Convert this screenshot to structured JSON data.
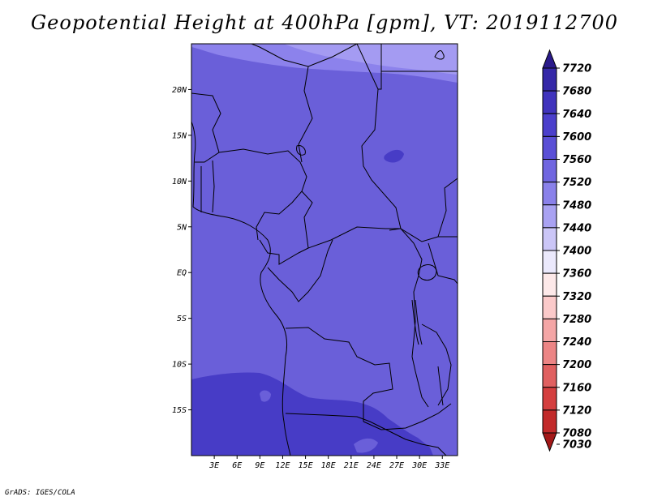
{
  "title": "Geopotential Height at 400hPa [gpm], VT: 2019112700",
  "footer": "GrADS: IGES/COLA",
  "map": {
    "lat_range": [
      -20,
      25
    ],
    "lon_range": [
      0,
      35
    ],
    "lat_ticks": [
      {
        "value": 20,
        "label": "20N"
      },
      {
        "value": 15,
        "label": "15N"
      },
      {
        "value": 10,
        "label": "10N"
      },
      {
        "value": 5,
        "label": "5N"
      },
      {
        "value": 0,
        "label": "EQ"
      },
      {
        "value": -5,
        "label": "5S"
      },
      {
        "value": -10,
        "label": "10S"
      },
      {
        "value": -15,
        "label": "15S"
      }
    ],
    "lon_ticks": [
      {
        "value": 3,
        "label": "3E"
      },
      {
        "value": 6,
        "label": "6E"
      },
      {
        "value": 9,
        "label": "9E"
      },
      {
        "value": 12,
        "label": "12E"
      },
      {
        "value": 15,
        "label": "15E"
      },
      {
        "value": 18,
        "label": "18E"
      },
      {
        "value": 21,
        "label": "21E"
      },
      {
        "value": 24,
        "label": "24E"
      },
      {
        "value": 27,
        "label": "27E"
      },
      {
        "value": 30,
        "label": "30E"
      },
      {
        "value": 33,
        "label": "33E"
      }
    ],
    "field_colors": {
      "background_7560_7600": "#6a5fd9",
      "north_7520_7560": "#8c82ec",
      "north_7480_7520": "#a49bf2",
      "south_7600_7640": "#473cc6"
    }
  },
  "colorbar": {
    "levels": [
      7720,
      7680,
      7640,
      7600,
      7560,
      7520,
      7480,
      7440,
      7400,
      7360,
      7320,
      7280,
      7240,
      7200,
      7160,
      7120,
      7080,
      7030
    ],
    "colors_top_to_bottom": [
      "#2a1a8a",
      "#3528a8",
      "#4033bd",
      "#4b3fcc",
      "#5a4fd6",
      "#7066e0",
      "#8a81ea",
      "#a9a2f2",
      "#cbc6f7",
      "#ebe9fc",
      "#fde9e9",
      "#fbcaca",
      "#f4a6a6",
      "#ec8585",
      "#e06060",
      "#d43f3f",
      "#c22a2a",
      "#a31818"
    ]
  }
}
